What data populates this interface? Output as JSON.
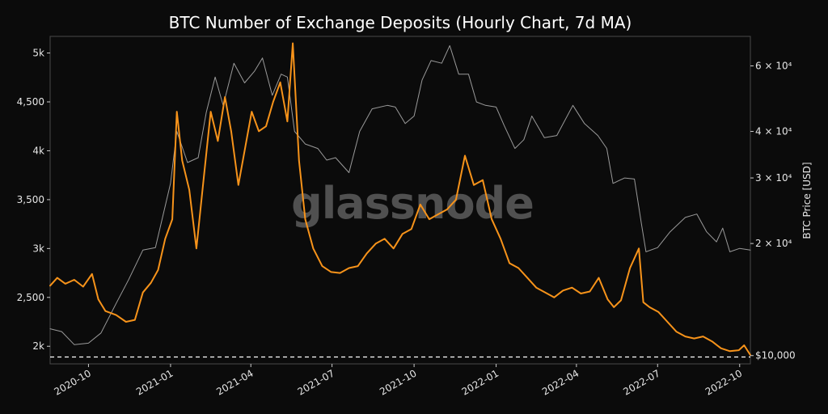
{
  "chart_data": {
    "type": "line",
    "title": "BTC Number of Exchange Deposits (Hourly Chart, 7d MA)",
    "watermark": "glassnode",
    "xlabel": "",
    "ylabel_left": "",
    "ylabel_right": "BTC Price [USD]",
    "x_ticks": [
      "2020-10",
      "2021-01",
      "2021-04",
      "2021-07",
      "2021-10",
      "2022-01",
      "2022-04",
      "2022-07",
      "2022-10"
    ],
    "x_range": [
      "2020-08-19",
      "2022-10-13"
    ],
    "y_left_ticks": [
      "2k",
      "2,500",
      "3k",
      "3,500",
      "4k",
      "4,500",
      "5k"
    ],
    "y_left_tick_values": [
      2000,
      2500,
      3000,
      3500,
      4000,
      4500,
      5000
    ],
    "y_left_range": [
      1820,
      5170
    ],
    "y_right_scale": "log",
    "y_right_ticks": [
      "$10,000",
      "2 × 10⁴",
      "3 × 10⁴",
      "4 × 10⁴",
      "6 × 10⁴"
    ],
    "y_right_tick_values": [
      10000,
      20000,
      30000,
      40000,
      60000
    ],
    "y_right_range": [
      9500,
      72000
    ],
    "threshold_line": {
      "axis": "left",
      "value": 1890,
      "style": "dashed",
      "color": "#ffffff"
    },
    "series": [
      {
        "name": "",
        "axis": "left",
        "color": "#f7931a",
        "x": [
          "2020-08-19",
          "2020-08-27",
          "2020-09-05",
          "2020-09-15",
          "2020-09-25",
          "2020-10-05",
          "2020-10-12",
          "2020-10-20",
          "2020-11-01",
          "2020-11-12",
          "2020-11-22",
          "2020-12-01",
          "2020-12-10",
          "2020-12-18",
          "2020-12-26",
          "2021-01-03",
          "2021-01-08",
          "2021-01-14",
          "2021-01-22",
          "2021-01-30",
          "2021-02-07",
          "2021-02-15",
          "2021-02-23",
          "2021-03-03",
          "2021-03-10",
          "2021-03-18",
          "2021-03-26",
          "2021-04-02",
          "2021-04-10",
          "2021-04-18",
          "2021-04-26",
          "2021-05-04",
          "2021-05-12",
          "2021-05-18",
          "2021-05-25",
          "2021-06-01",
          "2021-06-10",
          "2021-06-20",
          "2021-06-30",
          "2021-07-10",
          "2021-07-20",
          "2021-07-30",
          "2021-08-09",
          "2021-08-19",
          "2021-08-29",
          "2021-09-08",
          "2021-09-18",
          "2021-09-28",
          "2021-10-08",
          "2021-10-18",
          "2021-10-28",
          "2021-11-07",
          "2021-11-17",
          "2021-11-27",
          "2021-12-07",
          "2021-12-17",
          "2021-12-27",
          "2022-01-06",
          "2022-01-16",
          "2022-01-26",
          "2022-02-05",
          "2022-02-15",
          "2022-02-25",
          "2022-03-07",
          "2022-03-17",
          "2022-03-27",
          "2022-04-06",
          "2022-04-16",
          "2022-04-26",
          "2022-05-06",
          "2022-05-13",
          "2022-05-21",
          "2022-05-31",
          "2022-06-10",
          "2022-06-15",
          "2022-06-22",
          "2022-07-02",
          "2022-07-12",
          "2022-07-22",
          "2022-08-01",
          "2022-08-11",
          "2022-08-21",
          "2022-08-31",
          "2022-09-10",
          "2022-09-20",
          "2022-09-30",
          "2022-10-06",
          "2022-10-13"
        ],
        "values": [
          2620,
          2700,
          2640,
          2680,
          2610,
          2740,
          2480,
          2360,
          2320,
          2250,
          2270,
          2550,
          2650,
          2780,
          3100,
          3300,
          4400,
          3900,
          3600,
          3000,
          3700,
          4400,
          4100,
          4550,
          4200,
          3650,
          4050,
          4400,
          4200,
          4250,
          4500,
          4700,
          4300,
          5100,
          3900,
          3300,
          3000,
          2820,
          2760,
          2750,
          2800,
          2820,
          2950,
          3050,
          3100,
          3000,
          3150,
          3200,
          3450,
          3300,
          3350,
          3400,
          3500,
          3950,
          3650,
          3700,
          3300,
          3100,
          2850,
          2800,
          2700,
          2600,
          2550,
          2500,
          2570,
          2600,
          2540,
          2560,
          2700,
          2480,
          2400,
          2470,
          2800,
          3000,
          2450,
          2400,
          2350,
          2250,
          2150,
          2100,
          2080,
          2100,
          2050,
          1980,
          1950,
          1960,
          2010,
          1910
        ]
      },
      {
        "name": "",
        "axis": "right",
        "color": "#9a9a9a",
        "x": [
          "2020-08-19",
          "2020-09-01",
          "2020-09-15",
          "2020-10-01",
          "2020-10-15",
          "2020-11-01",
          "2020-11-15",
          "2020-12-01",
          "2020-12-15",
          "2021-01-01",
          "2021-01-08",
          "2021-01-20",
          "2021-02-01",
          "2021-02-10",
          "2021-02-20",
          "2021-03-01",
          "2021-03-13",
          "2021-03-25",
          "2021-04-05",
          "2021-04-14",
          "2021-04-25",
          "2021-05-05",
          "2021-05-12",
          "2021-05-20",
          "2021-06-01",
          "2021-06-15",
          "2021-06-25",
          "2021-07-05",
          "2021-07-20",
          "2021-08-01",
          "2021-08-15",
          "2021-09-01",
          "2021-09-10",
          "2021-09-21",
          "2021-10-01",
          "2021-10-10",
          "2021-10-20",
          "2021-11-01",
          "2021-11-10",
          "2021-11-20",
          "2021-12-01",
          "2021-12-10",
          "2021-12-20",
          "2022-01-01",
          "2022-01-10",
          "2022-01-22",
          "2022-02-01",
          "2022-02-10",
          "2022-02-24",
          "2022-03-10",
          "2022-03-28",
          "2022-04-10",
          "2022-04-25",
          "2022-05-05",
          "2022-05-12",
          "2022-05-25",
          "2022-06-05",
          "2022-06-13",
          "2022-06-18",
          "2022-07-01",
          "2022-07-15",
          "2022-08-01",
          "2022-08-14",
          "2022-08-25",
          "2022-09-05",
          "2022-09-12",
          "2022-09-20",
          "2022-10-01",
          "2022-10-13"
        ],
        "values": [
          11800,
          11600,
          10700,
          10800,
          11500,
          13800,
          16000,
          19200,
          19500,
          29000,
          40000,
          33000,
          34000,
          45000,
          56000,
          47000,
          61000,
          54000,
          58000,
          63000,
          50000,
          57000,
          56000,
          40000,
          37000,
          36000,
          33500,
          34000,
          31000,
          40000,
          46000,
          47000,
          46500,
          42000,
          44000,
          55000,
          62000,
          61000,
          68000,
          57000,
          57000,
          48000,
          47000,
          46500,
          41500,
          36000,
          38000,
          44000,
          38500,
          39000,
          47000,
          42000,
          39000,
          36000,
          29000,
          30000,
          29800,
          22500,
          19000,
          19500,
          21500,
          23500,
          24000,
          21500,
          20200,
          22000,
          19000,
          19400,
          19200
        ]
      }
    ]
  }
}
